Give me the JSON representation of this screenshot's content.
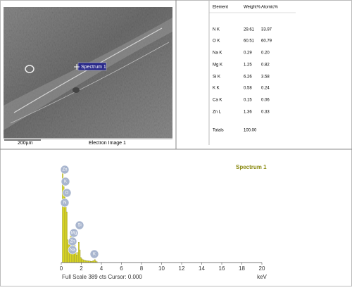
{
  "sem": {
    "spectrum_label": "Spectrum 1",
    "scale_bar": "200µm",
    "caption": "Electron Image 1"
  },
  "table": {
    "headers": [
      "Element",
      "Weight%",
      "Atomic%"
    ],
    "rows": [
      [
        "N K",
        "29.61",
        "33.97"
      ],
      [
        "O K",
        "60.51",
        "60.79"
      ],
      [
        "Na K",
        "0.29",
        "0.20"
      ],
      [
        "Mg K",
        "1.25",
        "0.82"
      ],
      [
        "Si K",
        "6.26",
        "3.58"
      ],
      [
        "K K",
        "0.58",
        "0.24"
      ],
      [
        "Ca K",
        "0.15",
        "0.06"
      ],
      [
        "Zn L",
        "1.36",
        "0.33"
      ]
    ],
    "totals": [
      "Totals",
      "100.00"
    ]
  },
  "chart_data": {
    "type": "bar",
    "x": [
      0.0,
      0.1,
      0.2,
      0.3,
      0.4,
      0.5,
      0.6,
      0.7,
      0.8,
      0.9,
      1.0,
      1.1,
      1.2,
      1.3,
      1.4,
      1.5,
      1.6,
      1.7,
      1.8,
      1.9,
      2.0,
      2.1,
      2.2,
      2.3,
      2.4,
      2.5,
      2.6,
      2.7,
      2.8,
      2.9,
      3.0,
      3.1,
      3.2,
      3.3,
      3.4,
      3.5
    ],
    "series": [
      {
        "name": "Spectrum 1",
        "color": "#e6e21c",
        "values": [
          0,
          380,
          300,
          280,
          240,
          200,
          90,
          70,
          80,
          110,
          130,
          100,
          60,
          70,
          40,
          30,
          40,
          80,
          50,
          20,
          15,
          12,
          10,
          9,
          8,
          7,
          7,
          6,
          6,
          5,
          5,
          6,
          8,
          12,
          6,
          4
        ]
      }
    ],
    "xlim": [
      0,
      20
    ],
    "xticks": [
      0,
      2,
      4,
      6,
      8,
      10,
      12,
      14,
      16,
      18,
      20
    ],
    "ylim": [
      0,
      389
    ],
    "xlabel": "keV",
    "footer": "Full Scale 389 cts Cursor: 0.000",
    "peak_labels": [
      "Zn",
      "K",
      "O",
      "N",
      "Si",
      "Mg",
      "Zn",
      "Na",
      "K"
    ]
  }
}
